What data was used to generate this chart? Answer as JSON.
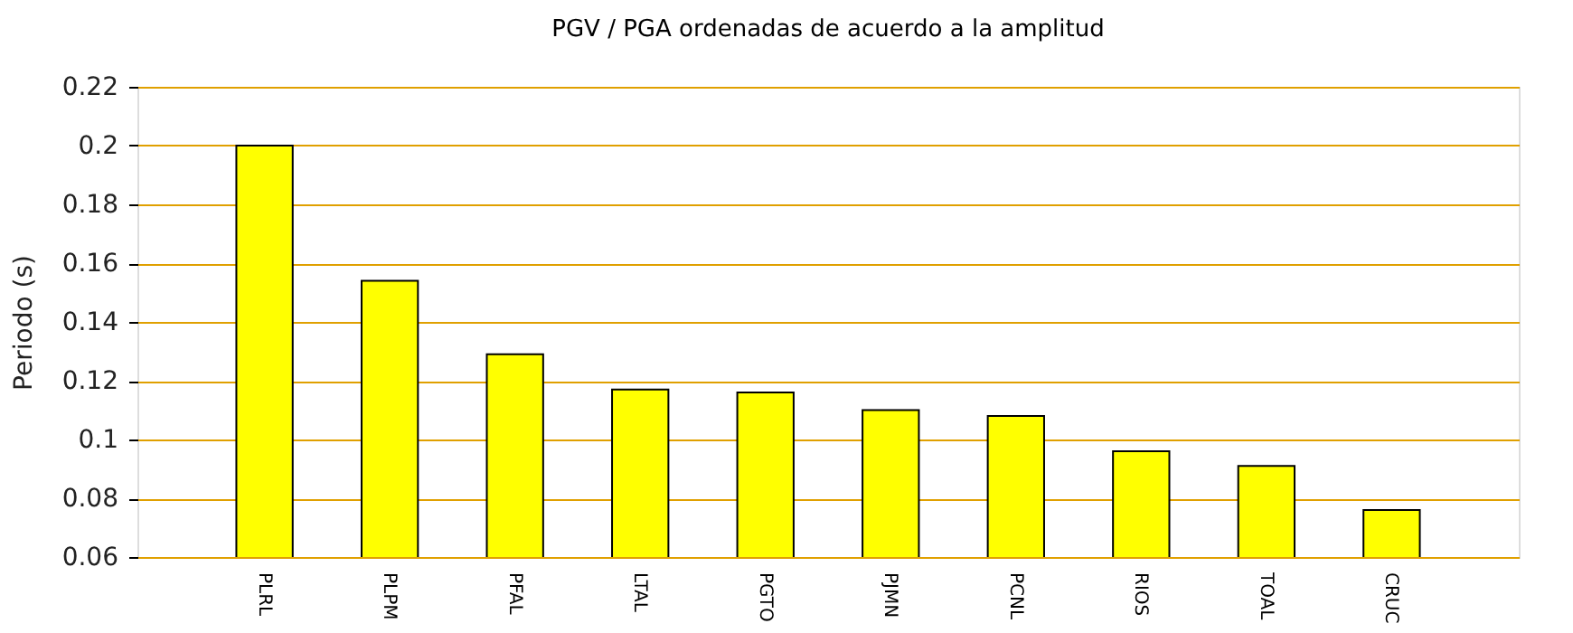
{
  "chart_data": {
    "type": "bar",
    "title": "PGV / PGA ordenadas de acuerdo a la amplitud",
    "ylabel": "Periodo (s)",
    "categories": [
      "PLRL",
      "PLPM",
      "PFAL",
      "LTAL",
      "PGTO",
      "PJMN",
      "PCNL",
      "RIOS",
      "TOAL",
      "CRUC"
    ],
    "values": [
      0.2,
      0.154,
      0.129,
      0.117,
      0.116,
      0.11,
      0.108,
      0.096,
      0.091,
      0.076
    ],
    "color": "#ffff00",
    "ylim": [
      0.06,
      0.22
    ],
    "yticks": [
      0.06,
      0.08,
      0.1,
      0.12,
      0.14,
      0.16,
      0.18,
      0.2,
      0.22
    ],
    "grid": "y"
  }
}
